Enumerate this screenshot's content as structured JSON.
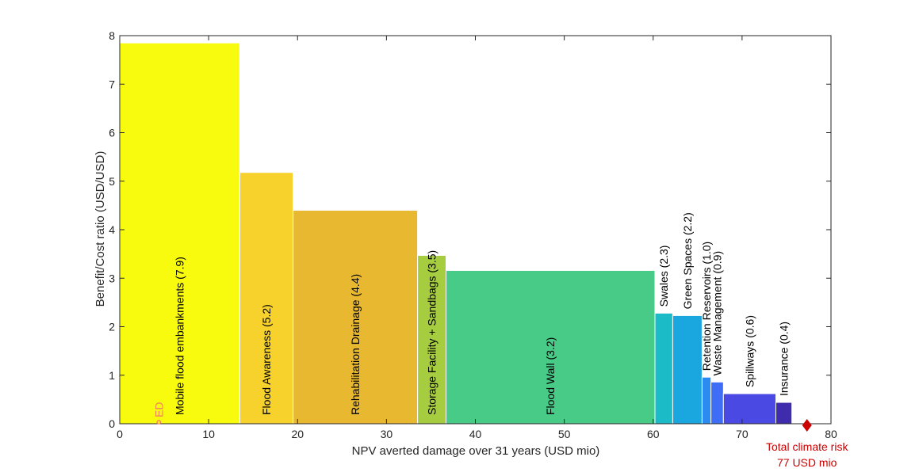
{
  "chart_data": {
    "type": "bar",
    "title": "",
    "xlabel": "NPV averted damage over 31 years (USD mio)",
    "ylabel": "Benefit/Cost ratio (USD/USD)",
    "xlim": [
      0,
      80
    ],
    "ylim": [
      0,
      8
    ],
    "xticks": [
      "0",
      "10",
      "20",
      "30",
      "40",
      "50",
      "60",
      "70",
      "80"
    ],
    "yticks": [
      "0",
      "1",
      "2",
      "3",
      "4",
      "5",
      "6",
      "7",
      "8"
    ],
    "grid": false,
    "bars": [
      {
        "label": "Mobile flood embankments  (7.9)",
        "x_start": 0.0,
        "x_end": 13.5,
        "value": 7.85,
        "color": "#f9fb0e"
      },
      {
        "label": "Flood Awareness  (5.2)",
        "x_start": 13.5,
        "x_end": 19.5,
        "value": 5.18,
        "color": "#f7d22d"
      },
      {
        "label": "Rehabilitation Drainage  (4.4)",
        "x_start": 19.5,
        "x_end": 33.5,
        "value": 4.4,
        "color": "#e9b831"
      },
      {
        "label": "Storage Facility + Sandbags  (3.5)",
        "x_start": 33.5,
        "x_end": 36.7,
        "value": 3.47,
        "color": "#a5cd3f"
      },
      {
        "label": "Flood Wall  (3.2)",
        "x_start": 36.7,
        "x_end": 60.2,
        "value": 3.16,
        "color": "#47cb86"
      },
      {
        "label": "Swales  (2.3)",
        "x_start": 60.2,
        "x_end": 62.2,
        "value": 2.28,
        "color": "#1cbbc8"
      },
      {
        "label": "Green Spaces  (2.2)",
        "x_start": 62.2,
        "x_end": 65.5,
        "value": 2.23,
        "color": "#1aa7e0"
      },
      {
        "label": "Retention Reservoirs  (1.0)",
        "x_start": 65.5,
        "x_end": 66.5,
        "value": 0.96,
        "color": "#2c8bf1"
      },
      {
        "label": "Waste Management  (0.9)",
        "x_start": 66.5,
        "x_end": 67.9,
        "value": 0.86,
        "color": "#3e6ef5"
      },
      {
        "label": "Spillways  (0.6)",
        "x_start": 67.9,
        "x_end": 73.8,
        "value": 0.62,
        "color": "#4a49e3"
      },
      {
        "label": "Insurance  (0.4)",
        "x_start": 73.8,
        "x_end": 75.6,
        "value": 0.44,
        "color": "#3f2cac"
      }
    ],
    "annotations": [
      {
        "text": "ED",
        "marker": "circle",
        "x": 4.4,
        "y": 0,
        "color": "#f0825a"
      },
      {
        "text": "Total climate risk",
        "text2": "77 USD mio",
        "marker": "diamond",
        "x": 77.3,
        "y": 0,
        "color": "#cc0000"
      }
    ]
  }
}
